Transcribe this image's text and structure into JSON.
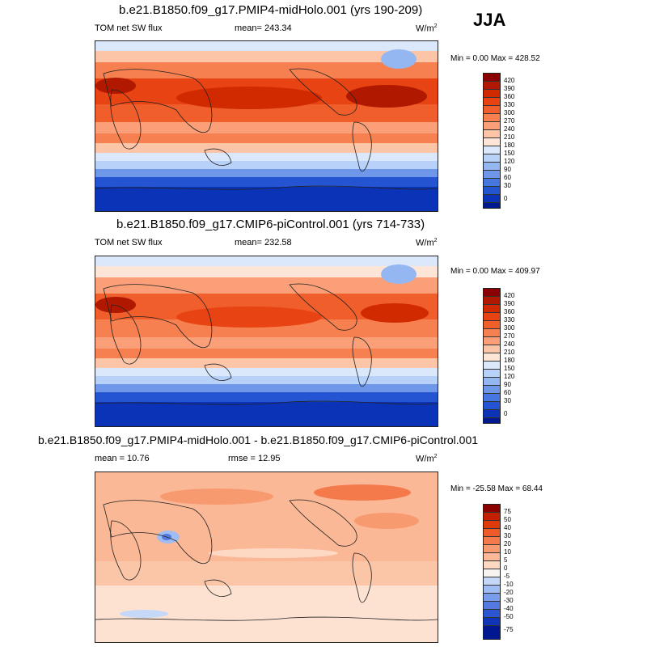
{
  "season": "JJA",
  "panels": [
    {
      "title": "b.e21.B1850.f09_g17.PMIP4-midHolo.001 (yrs 190-209)",
      "left_label": "TOM net SW flux",
      "center_label": "mean= 243.34",
      "units": "W/m",
      "units_sup": "2",
      "minmax": "Min =   0.00 Max = 428.52",
      "colorbar_ticks": [
        "420",
        "390",
        "360",
        "330",
        "300",
        "270",
        "240",
        "210",
        "180",
        "150",
        "120",
        "90",
        "60",
        "30",
        "0"
      ],
      "colorbar_colors": [
        "#8b0000",
        "#b01800",
        "#d22a00",
        "#e84312",
        "#f05e2c",
        "#f6804f",
        "#fa9f78",
        "#fdc5a8",
        "#fde6d8",
        "#dbe8fb",
        "#b8d1f8",
        "#94b7f2",
        "#6e97ea",
        "#4876e0",
        "#2454d2",
        "#0a33b8",
        "#00198f"
      ]
    },
    {
      "title": "b.e21.B1850.f09_g17.CMIP6-piControl.001 (yrs 714-733)",
      "left_label": "TOM net SW flux",
      "center_label": "mean= 232.58",
      "units": "W/m",
      "units_sup": "2",
      "minmax": "Min =   0.00 Max = 409.97",
      "colorbar_ticks": [
        "420",
        "390",
        "360",
        "330",
        "300",
        "270",
        "240",
        "210",
        "180",
        "150",
        "120",
        "90",
        "60",
        "30",
        "0"
      ],
      "colorbar_colors": [
        "#8b0000",
        "#b01800",
        "#d22a00",
        "#e84312",
        "#f05e2c",
        "#f6804f",
        "#fa9f78",
        "#fdc5a8",
        "#fde6d8",
        "#dbe8fb",
        "#b8d1f8",
        "#94b7f2",
        "#6e97ea",
        "#4876e0",
        "#2454d2",
        "#0a33b8",
        "#00198f"
      ]
    },
    {
      "title": "b.e21.B1850.f09_g17.PMIP4-midHolo.001 - b.e21.B1850.f09_g17.CMIP6-piControl.001",
      "left_label": "mean =  10.76",
      "center_label": "rmse =  12.95",
      "units": "W/m",
      "units_sup": "2",
      "minmax": "Min = -25.58 Max =  68.44",
      "colorbar_ticks": [
        "75",
        "50",
        "40",
        "30",
        "20",
        "10",
        "5",
        "0",
        "-5",
        "-10",
        "-20",
        "-30",
        "-40",
        "-50",
        "-75"
      ],
      "colorbar_colors": [
        "#8b0000",
        "#c41f00",
        "#e03a0a",
        "#ef5a2a",
        "#f47a4c",
        "#f89a70",
        "#fbb896",
        "#fdd9c4",
        "#f7f3f0",
        "#c5d8f7",
        "#9fbdf2",
        "#7a9deb",
        "#5479e0",
        "#2e55d0",
        "#1034b8",
        "#00188f"
      ]
    }
  ],
  "chart_data": [
    {
      "type": "heatmap",
      "title": "b.e21.B1850.f09_g17.PMIP4-midHolo.001 (yrs 190-209)",
      "variable": "TOM net SW flux",
      "units": "W/m2",
      "mean": 243.34,
      "min": 0.0,
      "max": 428.52,
      "levels": [
        0,
        30,
        60,
        90,
        120,
        150,
        180,
        210,
        240,
        270,
        300,
        330,
        360,
        390,
        420
      ],
      "zonal_bands": [
        {
          "lat": 80,
          "value": 200
        },
        {
          "lat": 60,
          "value": 330
        },
        {
          "lat": 40,
          "value": 365
        },
        {
          "lat": 20,
          "value": 330
        },
        {
          "lat": 0,
          "value": 300
        },
        {
          "lat": -20,
          "value": 290
        },
        {
          "lat": -40,
          "value": 200
        },
        {
          "lat": -60,
          "value": 70
        },
        {
          "lat": -80,
          "value": 10
        }
      ]
    },
    {
      "type": "heatmap",
      "title": "b.e21.B1850.f09_g17.CMIP6-piControl.001 (yrs 714-733)",
      "variable": "TOM net SW flux",
      "units": "W/m2",
      "mean": 232.58,
      "min": 0.0,
      "max": 409.97,
      "levels": [
        0,
        30,
        60,
        90,
        120,
        150,
        180,
        210,
        240,
        270,
        300,
        330,
        360,
        390,
        420
      ],
      "zonal_bands": [
        {
          "lat": 80,
          "value": 190
        },
        {
          "lat": 60,
          "value": 300
        },
        {
          "lat": 40,
          "value": 340
        },
        {
          "lat": 20,
          "value": 320
        },
        {
          "lat": 0,
          "value": 295
        },
        {
          "lat": -20,
          "value": 285
        },
        {
          "lat": -40,
          "value": 200
        },
        {
          "lat": -60,
          "value": 70
        },
        {
          "lat": -80,
          "value": 10
        }
      ]
    },
    {
      "type": "heatmap",
      "title": "b.e21.B1850.f09_g17.PMIP4-midHolo.001 - b.e21.B1850.f09_g17.CMIP6-piControl.001",
      "variable": "difference",
      "units": "W/m2",
      "mean": 10.76,
      "rmse": 12.95,
      "min": -25.58,
      "max": 68.44,
      "levels": [
        -75,
        -50,
        -40,
        -30,
        -20,
        -10,
        -5,
        0,
        5,
        10,
        20,
        30,
        40,
        50,
        75
      ],
      "zonal_bands": [
        {
          "lat": 80,
          "value": 22
        },
        {
          "lat": 60,
          "value": 25
        },
        {
          "lat": 40,
          "value": 22
        },
        {
          "lat": 20,
          "value": 18
        },
        {
          "lat": 0,
          "value": 15
        },
        {
          "lat": -20,
          "value": 12
        },
        {
          "lat": -40,
          "value": 7
        },
        {
          "lat": -60,
          "value": 3
        },
        {
          "lat": -80,
          "value": 2
        }
      ]
    }
  ]
}
